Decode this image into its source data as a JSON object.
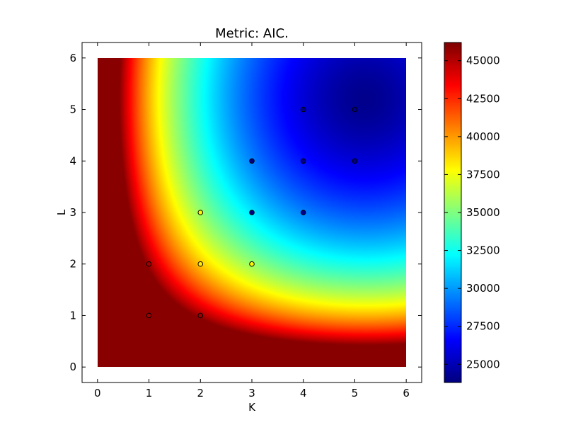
{
  "chart_data": {
    "type": "heatmap",
    "title": "Metric: AIC.",
    "xlabel": "K",
    "ylabel": "L",
    "xlim": [
      -0.3,
      6.3
    ],
    "ylim": [
      -0.3,
      6.3
    ],
    "heatmap_extent": {
      "x": [
        0,
        6
      ],
      "y": [
        0,
        6
      ]
    },
    "xticks": [
      0,
      1,
      2,
      3,
      4,
      5,
      6
    ],
    "xtick_labels": [
      "0",
      "1",
      "2",
      "3",
      "4",
      "5",
      "6"
    ],
    "yticks": [
      0,
      1,
      2,
      3,
      4,
      5,
      6
    ],
    "ytick_labels": [
      "0",
      "1",
      "2",
      "3",
      "4",
      "5",
      "6"
    ],
    "colormap": "jet",
    "color_range": [
      23800,
      46200
    ],
    "colorbar_ticks": [
      25000,
      27500,
      30000,
      32500,
      35000,
      37500,
      40000,
      42500,
      45000
    ],
    "colorbar_tick_labels": [
      "25000",
      "27500",
      "30000",
      "32500",
      "35000",
      "37500",
      "40000",
      "42500",
      "45000"
    ],
    "grid": false,
    "points": [
      {
        "k": 1,
        "l": 1,
        "value": 45500
      },
      {
        "k": 1,
        "l": 2,
        "value": 45500
      },
      {
        "k": 2,
        "l": 1,
        "value": 45500
      },
      {
        "k": 2,
        "l": 2,
        "value": 38200
      },
      {
        "k": 2,
        "l": 3,
        "value": 38000
      },
      {
        "k": 3,
        "l": 2,
        "value": 38000
      },
      {
        "k": 3,
        "l": 3,
        "value": 24000
      },
      {
        "k": 3,
        "l": 4,
        "value": 24000
      },
      {
        "k": 4,
        "l": 3,
        "value": 24000
      },
      {
        "k": 4,
        "l": 4,
        "value": 24000
      },
      {
        "k": 4,
        "l": 5,
        "value": 24000
      },
      {
        "k": 5,
        "l": 4,
        "value": 24000
      },
      {
        "k": 5,
        "l": 5,
        "value": 24000
      }
    ]
  }
}
